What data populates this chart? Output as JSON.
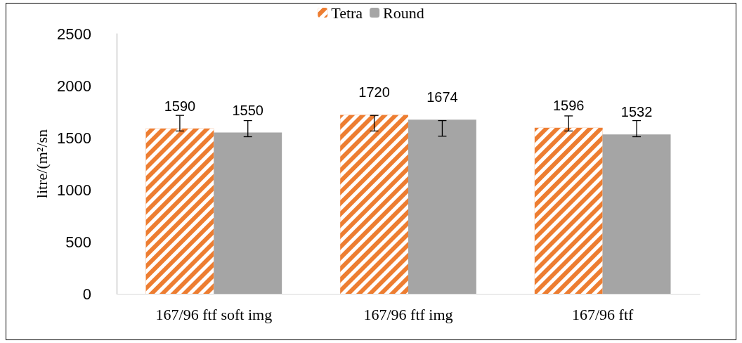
{
  "chart_data": {
    "type": "bar",
    "ylabel": "litre/(m²/sn",
    "categories": [
      "167/96 ftf soft img",
      "167/96 ftf img",
      "167/96 ftf"
    ],
    "series": [
      {
        "name": "Tetra",
        "color": "#ed7d31",
        "values": [
          1590,
          1720,
          1596
        ],
        "errors": [
          [
            1565,
            1715
          ],
          [
            1565,
            1715
          ],
          [
            1565,
            1710
          ]
        ]
      },
      {
        "name": "Round",
        "color": "#a5a5a5",
        "values": [
          1550,
          1674,
          1532
        ],
        "errors": [
          [
            1510,
            1665
          ],
          [
            1515,
            1665
          ],
          [
            1510,
            1665
          ]
        ]
      }
    ],
    "ylim": [
      0,
      2500
    ],
    "yticks": [
      0,
      500,
      1000,
      1500,
      2000,
      2500
    ],
    "grid": false,
    "legend": "top",
    "data_labels": true
  }
}
